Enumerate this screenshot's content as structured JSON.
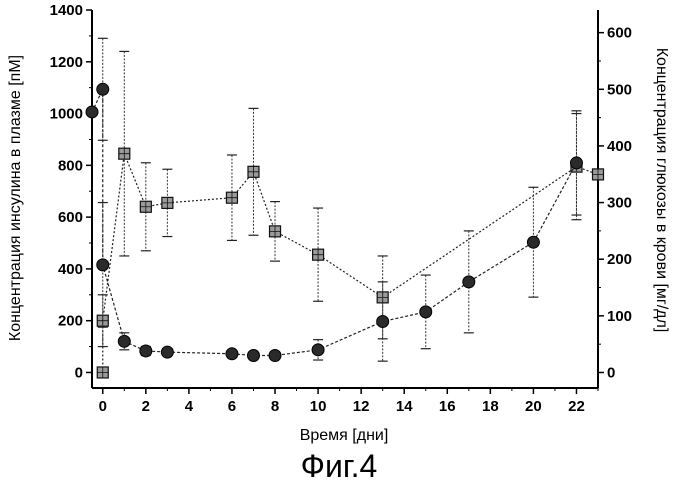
{
  "figure_caption": "Фиг.4",
  "chart_data": {
    "type": "line",
    "xlabel": "Время [дни]",
    "ylabel_left": "Концентрация инсулина в плазме [пМ]",
    "ylabel_right": "Концентрация глюкозы в крови [мг/дл]",
    "xlim": [
      -0.5,
      23
    ],
    "ylim_left": [
      -60,
      1400
    ],
    "ylim_right": [
      -27.4,
      640
    ],
    "x_ticks": [
      0,
      2,
      4,
      6,
      8,
      10,
      12,
      14,
      16,
      18,
      20,
      22
    ],
    "y_ticks_left": [
      0,
      200,
      400,
      600,
      800,
      1000,
      1200,
      1400
    ],
    "y_ticks_right": [
      0,
      100,
      200,
      300,
      400,
      500,
      600
    ],
    "grid": false,
    "series": [
      {
        "marker": "square",
        "axis": "left",
        "points": [
          {
            "x": 0,
            "y": 0,
            "err": 0
          },
          {
            "x": 0,
            "y": 200,
            "err": 100
          },
          {
            "x": 1,
            "y": 845,
            "err": 395
          },
          {
            "x": 2,
            "y": 640,
            "err": 170
          },
          {
            "x": 3,
            "y": 655,
            "err": 130
          },
          {
            "x": 6,
            "y": 675,
            "err": 165
          },
          {
            "x": 7,
            "y": 775,
            "err": 245
          },
          {
            "x": 8,
            "y": 545,
            "err": 115
          },
          {
            "x": 10,
            "y": 455,
            "err": 180
          },
          {
            "x": 13,
            "y": 290,
            "err": 160
          },
          {
            "x": 22,
            "y": 795,
            "err": 205
          },
          {
            "x": 23,
            "y": 765,
            "err": 0
          }
        ]
      },
      {
        "marker": "circle",
        "axis": "right",
        "points": [
          {
            "x": -0.5,
            "y": 460,
            "err": 0
          },
          {
            "x": 0,
            "y": 500,
            "err": 90
          },
          {
            "x": 0,
            "y": 190,
            "err": 110
          },
          {
            "x": 1,
            "y": 55,
            "err": 15
          },
          {
            "x": 2,
            "y": 38,
            "err": 8
          },
          {
            "x": 3,
            "y": 36,
            "err": 6
          },
          {
            "x": 6,
            "y": 33,
            "err": 5
          },
          {
            "x": 7,
            "y": 30,
            "err": 4
          },
          {
            "x": 8,
            "y": 30,
            "err": 4
          },
          {
            "x": 10,
            "y": 40,
            "err": 18
          },
          {
            "x": 13,
            "y": 90,
            "err": 70
          },
          {
            "x": 15,
            "y": 107,
            "err": 65
          },
          {
            "x": 17,
            "y": 160,
            "err": 90
          },
          {
            "x": 20,
            "y": 230,
            "err": 97
          },
          {
            "x": 22,
            "y": 370,
            "err": 92
          }
        ]
      }
    ]
  }
}
